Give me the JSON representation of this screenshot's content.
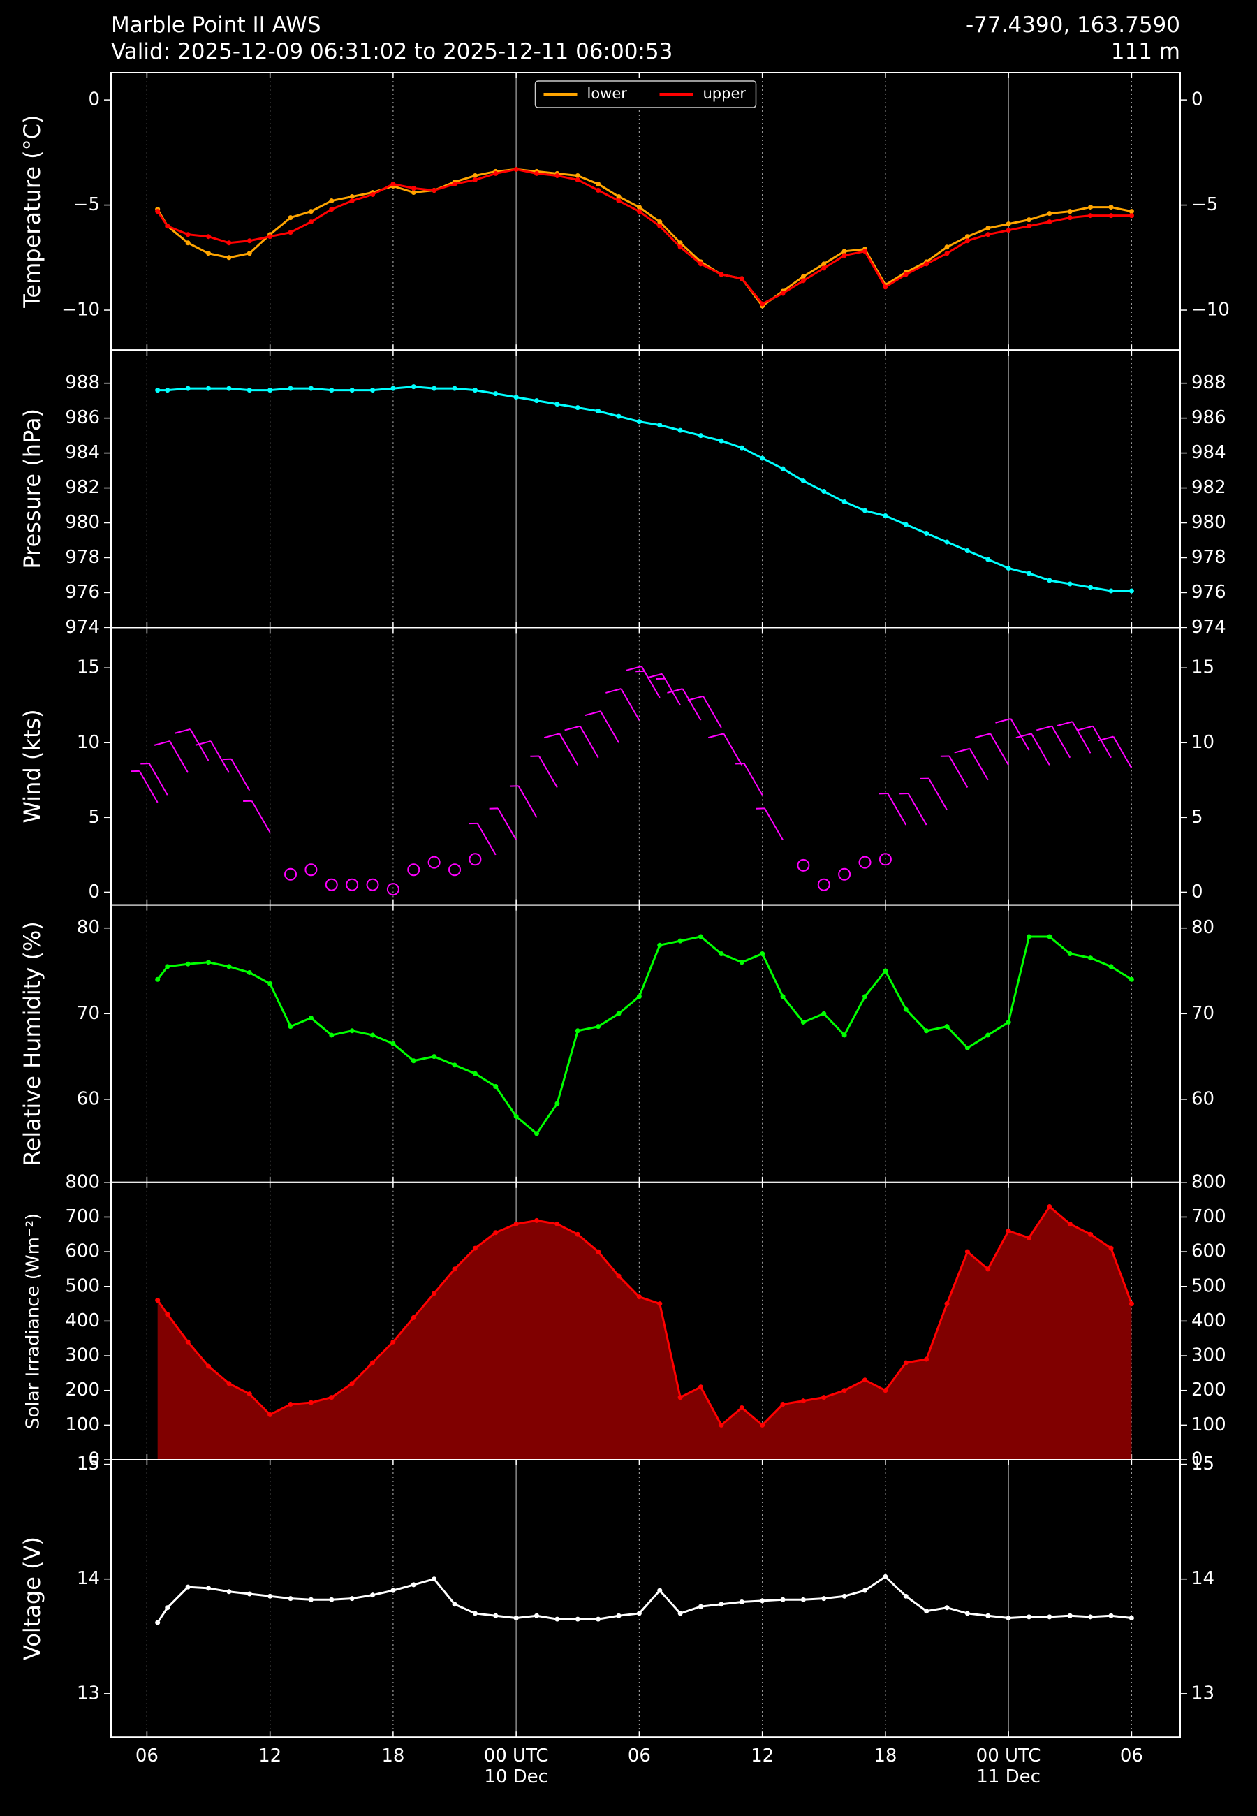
{
  "header": {
    "station": "Marble Point II AWS",
    "valid": "Valid: 2025-12-09 06:31:02 to 2025-12-11 06:00:53",
    "coords": "-77.4390, 163.7590",
    "elevation": "111 m"
  },
  "chart_data": [
    {
      "type": "line",
      "ylabel": "Temperature (°C)",
      "legend": "upper center",
      "x": [
        6.52,
        7,
        8,
        9,
        10,
        11,
        12,
        13,
        14,
        15,
        16,
        17,
        18,
        19,
        20,
        21,
        22,
        23,
        24,
        25,
        26,
        27,
        28,
        29,
        30,
        31,
        32,
        33,
        34,
        35,
        36,
        37,
        38,
        39,
        40,
        41,
        42,
        43,
        44,
        45,
        46,
        47,
        48,
        49,
        50,
        51,
        52,
        53,
        54
      ],
      "series": [
        {
          "name": "lower",
          "color": "#ffa500",
          "values": [
            -5.2,
            -6.0,
            -6.8,
            -7.3,
            -7.5,
            -7.3,
            -6.4,
            -5.6,
            -5.3,
            -4.8,
            -4.6,
            -4.4,
            -4.1,
            -4.4,
            -4.3,
            -3.9,
            -3.6,
            -3.4,
            -3.3,
            -3.4,
            -3.5,
            -3.6,
            -4.0,
            -4.6,
            -5.1,
            -5.8,
            -6.8,
            -7.7,
            -8.3,
            -8.5,
            -9.8,
            -9.1,
            -8.4,
            -7.8,
            -7.2,
            -7.1,
            -8.8,
            -8.2,
            -7.7,
            -7.0,
            -6.5,
            -6.1,
            -5.9,
            -5.7,
            -5.4,
            -5.3,
            -5.1,
            -5.1,
            -5.3
          ]
        },
        {
          "name": "upper",
          "color": "#ff0000",
          "values": [
            -5.3,
            -6.0,
            -6.4,
            -6.5,
            -6.8,
            -6.7,
            -6.5,
            -6.3,
            -5.8,
            -5.2,
            -4.8,
            -4.5,
            -4.0,
            -4.2,
            -4.3,
            -4.0,
            -3.8,
            -3.5,
            -3.3,
            -3.5,
            -3.6,
            -3.8,
            -4.3,
            -4.8,
            -5.3,
            -6.0,
            -7.0,
            -7.8,
            -8.3,
            -8.5,
            -9.7,
            -9.2,
            -8.6,
            -8.0,
            -7.4,
            -7.2,
            -8.9,
            -8.3,
            -7.8,
            -7.3,
            -6.7,
            -6.4,
            -6.2,
            -6.0,
            -5.8,
            -5.6,
            -5.5,
            -5.5,
            -5.5
          ]
        }
      ],
      "ylim": [
        -11.9,
        1.3
      ],
      "yticks": [
        {
          "value": -10,
          "label": "−10"
        },
        {
          "value": -5,
          "label": "−5"
        },
        0
      ]
    },
    {
      "type": "line",
      "ylabel": "Pressure (hPa)",
      "color": "#00ffff",
      "x": [
        6.52,
        7,
        8,
        9,
        10,
        11,
        12,
        13,
        14,
        15,
        16,
        17,
        18,
        19,
        20,
        21,
        22,
        23,
        24,
        25,
        26,
        27,
        28,
        29,
        30,
        31,
        32,
        33,
        34,
        35,
        36,
        37,
        38,
        39,
        40,
        41,
        42,
        43,
        44,
        45,
        46,
        47,
        48,
        49,
        50,
        51,
        52,
        53,
        54
      ],
      "values": [
        987.6,
        987.6,
        987.7,
        987.7,
        987.7,
        987.6,
        987.6,
        987.7,
        987.7,
        987.6,
        987.6,
        987.6,
        987.7,
        987.8,
        987.7,
        987.7,
        987.6,
        987.4,
        987.2,
        987.0,
        986.8,
        986.6,
        986.4,
        986.1,
        985.8,
        985.6,
        985.3,
        985.0,
        984.7,
        984.3,
        983.7,
        983.1,
        982.4,
        981.8,
        981.2,
        980.7,
        980.4,
        979.9,
        979.4,
        978.9,
        978.4,
        977.9,
        977.4,
        977.1,
        976.7,
        976.5,
        976.3,
        976.1,
        976.1
      ],
      "ylim": [
        974,
        989.9
      ],
      "yticks": [
        974,
        976,
        978,
        980,
        982,
        984,
        986,
        988
      ]
    },
    {
      "type": "barb",
      "ylabel": "Wind (kts)",
      "color": "#ff00ff",
      "x": [
        6.52,
        7,
        8,
        9,
        10,
        11,
        12,
        13,
        14,
        15,
        16,
        17,
        18,
        19,
        20,
        21,
        22,
        23,
        24,
        25,
        26,
        27,
        28,
        29,
        30,
        31,
        32,
        33,
        34,
        35,
        36,
        37,
        38,
        39,
        40,
        41,
        42,
        43,
        44,
        45,
        46,
        47,
        48,
        49,
        50,
        51,
        52,
        53,
        54
      ],
      "values": [
        6,
        6.5,
        8,
        8.8,
        8,
        6.8,
        4,
        1.2,
        1.5,
        0.5,
        0.5,
        0.5,
        0.2,
        1.5,
        2.0,
        1.5,
        2.2,
        2.5,
        3.5,
        5.0,
        7.0,
        8.5,
        9.0,
        10.0,
        11.5,
        13,
        12.5,
        11.5,
        11,
        8.5,
        6.5,
        3.5,
        1.8,
        0.5,
        1.2,
        2.0,
        2.2,
        4.5,
        4.5,
        5.5,
        7.0,
        7.5,
        8.5,
        9.5,
        8.5,
        9.0,
        9.3,
        9.0,
        8.3
      ],
      "ylim": [
        -0.85,
        17.7
      ],
      "yticks": [
        0,
        5,
        10,
        15
      ]
    },
    {
      "type": "line",
      "ylabel": "Relative Humidity (%)",
      "color": "#00ff00",
      "x": [
        6.52,
        7,
        8,
        9,
        10,
        11,
        12,
        13,
        14,
        15,
        16,
        17,
        18,
        19,
        20,
        21,
        22,
        23,
        24,
        25,
        26,
        27,
        28,
        29,
        30,
        31,
        32,
        33,
        34,
        35,
        36,
        37,
        38,
        39,
        40,
        41,
        42,
        43,
        44,
        45,
        46,
        47,
        48,
        49,
        50,
        51,
        52,
        53,
        54
      ],
      "values": [
        74,
        75.5,
        75.8,
        76,
        75.5,
        74.8,
        73.5,
        68.5,
        69.5,
        67.5,
        68,
        67.5,
        66.5,
        64.5,
        65,
        64,
        63,
        61.5,
        58,
        56,
        59.5,
        68,
        68.5,
        70,
        72,
        78,
        78.5,
        79,
        77,
        76,
        77,
        72,
        69,
        70,
        67.5,
        72,
        75,
        70.5,
        68,
        68.5,
        66,
        67.5,
        69,
        79,
        79,
        77,
        76.5,
        75.5,
        74
      ],
      "ylim": [
        50.3,
        82.7
      ],
      "yticks": [
        60,
        70,
        80
      ]
    },
    {
      "type": "area",
      "ylabel": "Solar Irradiance (Wm⁻²)",
      "color": "#ff0000",
      "fill": "#800000",
      "x": [
        6.52,
        7,
        8,
        9,
        10,
        11,
        12,
        13,
        14,
        15,
        16,
        17,
        18,
        19,
        20,
        21,
        22,
        23,
        24,
        25,
        26,
        27,
        28,
        29,
        30,
        31,
        32,
        33,
        34,
        35,
        36,
        37,
        38,
        39,
        40,
        41,
        42,
        43,
        44,
        45,
        46,
        47,
        48,
        49,
        50,
        51,
        52,
        53,
        54
      ],
      "values": [
        460,
        420,
        340,
        270,
        220,
        190,
        130,
        160,
        165,
        180,
        220,
        280,
        340,
        410,
        480,
        550,
        610,
        655,
        680,
        690,
        680,
        650,
        600,
        530,
        470,
        450,
        180,
        210,
        100,
        150,
        100,
        160,
        170,
        180,
        200,
        230,
        200,
        280,
        290,
        450,
        600,
        550,
        660,
        640,
        730,
        680,
        650,
        610,
        450
      ],
      "ylim": [
        0,
        800
      ],
      "yticks": [
        0,
        100,
        200,
        300,
        400,
        500,
        600,
        700,
        800
      ]
    },
    {
      "type": "line",
      "ylabel": "Voltage (V)",
      "color": "#ffffff",
      "x": [
        6.52,
        7,
        8,
        9,
        10,
        11,
        12,
        13,
        14,
        15,
        16,
        17,
        18,
        19,
        20,
        21,
        22,
        23,
        24,
        25,
        26,
        27,
        28,
        29,
        30,
        31,
        32,
        33,
        34,
        35,
        36,
        37,
        38,
        39,
        40,
        41,
        42,
        43,
        44,
        45,
        46,
        47,
        48,
        49,
        50,
        51,
        52,
        53,
        54
      ],
      "values": [
        13.62,
        13.75,
        13.93,
        13.92,
        13.89,
        13.87,
        13.85,
        13.83,
        13.82,
        13.82,
        13.83,
        13.86,
        13.9,
        13.95,
        14.0,
        13.78,
        13.7,
        13.68,
        13.66,
        13.68,
        13.65,
        13.65,
        13.65,
        13.68,
        13.7,
        13.9,
        13.7,
        13.76,
        13.78,
        13.8,
        13.81,
        13.82,
        13.82,
        13.83,
        13.85,
        13.9,
        14.02,
        13.85,
        13.72,
        13.75,
        13.7,
        13.68,
        13.66,
        13.67,
        13.67,
        13.68,
        13.67,
        13.68,
        13.66
      ],
      "ylim": [
        12.62,
        15.04
      ],
      "yticks": [
        13,
        14,
        15
      ],
      "xlim": [
        4.25,
        56.37
      ],
      "xticks": [
        {
          "value": 6,
          "label": "06"
        },
        {
          "value": 12,
          "label": "12"
        },
        {
          "value": 18,
          "label": "18"
        },
        {
          "value": 24,
          "label": "00 UTC\n10 Dec"
        },
        {
          "value": 30,
          "label": "06"
        },
        {
          "value": 36,
          "label": "12"
        },
        {
          "value": 42,
          "label": "18"
        },
        {
          "value": 48,
          "label": "00 UTC\n11 Dec"
        },
        {
          "value": 54,
          "label": "06"
        }
      ]
    }
  ]
}
